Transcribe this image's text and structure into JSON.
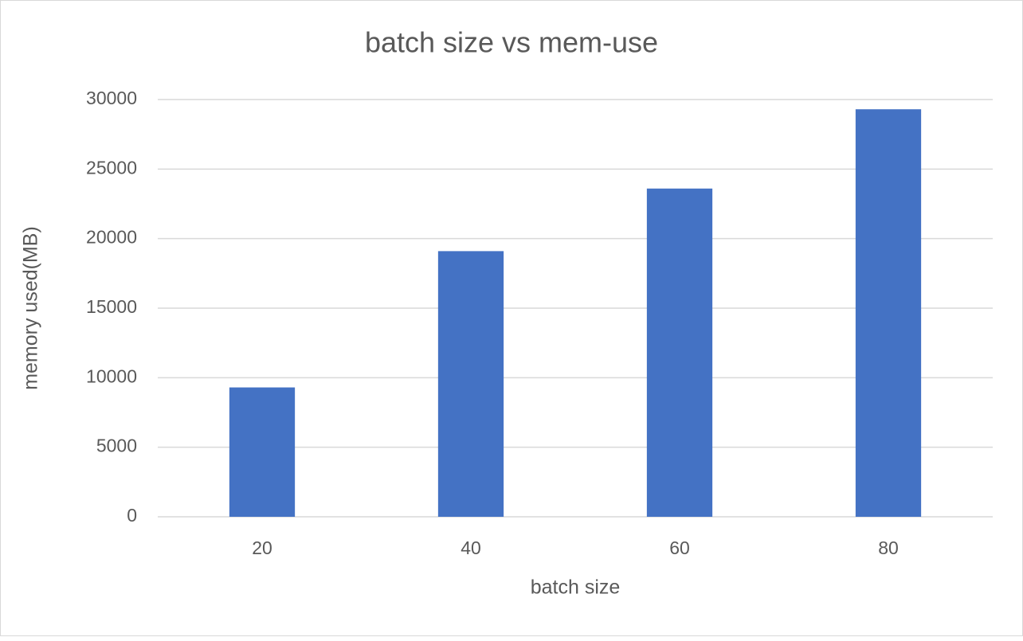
{
  "chart_data": {
    "type": "bar",
    "title": "batch size vs mem-use",
    "x_label": "batch size",
    "y_label": "memory used(MB)",
    "categories": [
      "20",
      "40",
      "60",
      "80"
    ],
    "values": [
      9300,
      19100,
      23600,
      29300
    ],
    "color": "#4472c4",
    "ylim": [
      0,
      30000
    ],
    "yticks": [
      0,
      5000,
      10000,
      15000,
      20000,
      25000,
      30000
    ],
    "grid": true
  }
}
